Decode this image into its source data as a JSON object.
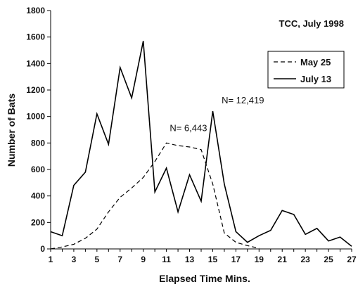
{
  "chart_data": {
    "type": "line",
    "title": "TCC, July 1998",
    "xlabel": "Elapsed Time Mins.",
    "ylabel": "Number of Bats",
    "xlim": [
      1,
      27
    ],
    "ylim": [
      0,
      1800
    ],
    "x_ticks": [
      1,
      3,
      5,
      7,
      9,
      11,
      13,
      15,
      17,
      19,
      21,
      23,
      25,
      27
    ],
    "y_ticks": [
      0,
      200,
      400,
      600,
      800,
      1000,
      1200,
      1400,
      1600,
      1800
    ],
    "grid": false,
    "legend_position": "top-right",
    "series": [
      {
        "name": "May 25",
        "style": "dashed",
        "color": "#000000",
        "x": [
          1,
          2,
          3,
          4,
          5,
          6,
          7,
          8,
          9,
          10,
          11,
          12,
          13,
          14,
          15,
          16,
          17,
          18,
          19
        ],
        "y": [
          0,
          15,
          35,
          80,
          150,
          280,
          390,
          460,
          540,
          660,
          800,
          780,
          770,
          750,
          490,
          120,
          50,
          25,
          5
        ]
      },
      {
        "name": "July 13",
        "style": "solid",
        "color": "#000000",
        "x": [
          1,
          2,
          3,
          4,
          5,
          6,
          7,
          8,
          9,
          10,
          11,
          12,
          13,
          14,
          15,
          16,
          17,
          18,
          19,
          20,
          21,
          22,
          23,
          24,
          25,
          26,
          27
        ],
        "y": [
          130,
          100,
          480,
          580,
          1020,
          790,
          1370,
          1140,
          1570,
          430,
          610,
          280,
          560,
          360,
          1040,
          490,
          130,
          50,
          100,
          140,
          290,
          260,
          110,
          155,
          60,
          90,
          20
        ]
      }
    ],
    "annotations": [
      {
        "text": "N= 6,443",
        "x": 12.9,
        "y": 890
      },
      {
        "text": "N= 12,419",
        "x": 17.6,
        "y": 1100
      }
    ]
  }
}
